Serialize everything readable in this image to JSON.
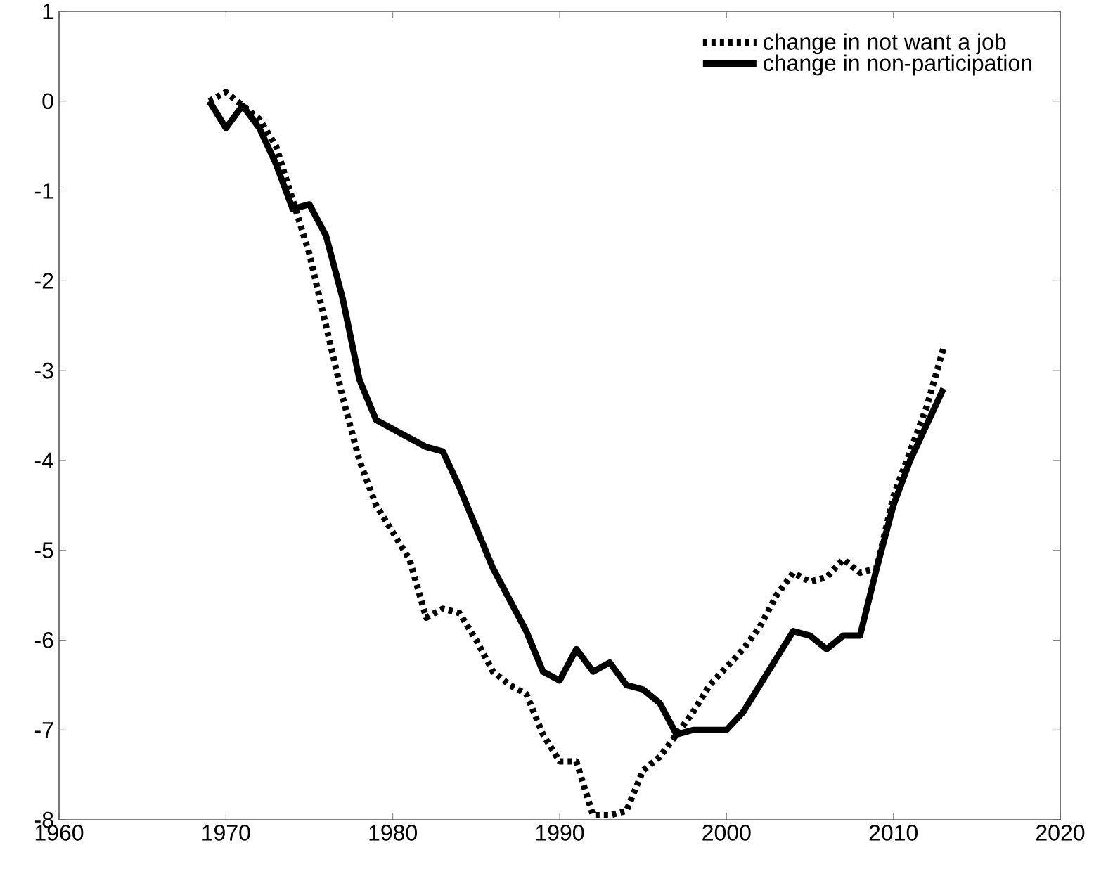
{
  "chart_data": {
    "type": "line",
    "xlim": [
      1960,
      2020
    ],
    "xticks": [
      1960,
      1970,
      1980,
      1990,
      2000,
      2010,
      2020
    ],
    "ylim": [
      -8,
      1
    ],
    "yticks": [
      -8,
      -7,
      -6,
      -5,
      -4,
      -3,
      -2,
      -1,
      0,
      1
    ],
    "grid": false,
    "legend": "top right",
    "marker": "none",
    "series": [
      {
        "name": "change in not want a job",
        "color": "#000000",
        "line_style": "dotted",
        "x": [
          1969,
          1970,
          1971,
          1972,
          1973,
          1974,
          1975,
          1976,
          1977,
          1978,
          1979,
          1980,
          1981,
          1982,
          1983,
          1984,
          1985,
          1986,
          1987,
          1988,
          1989,
          1990,
          1991,
          1992,
          1993,
          1994,
          1995,
          1996,
          1997,
          1998,
          1999,
          2000,
          2001,
          2002,
          2003,
          2004,
          2005,
          2006,
          2007,
          2008,
          2009,
          2010,
          2011,
          2012,
          2013
        ],
        "values": [
          0,
          0.1,
          -0.05,
          -0.2,
          -0.5,
          -1.1,
          -1.7,
          -2.5,
          -3.3,
          -4.0,
          -4.5,
          -4.8,
          -5.1,
          -5.75,
          -5.65,
          -5.7,
          -6.0,
          -6.35,
          -6.5,
          -6.6,
          -7.05,
          -7.35,
          -7.35,
          -7.95,
          -7.95,
          -7.9,
          -7.45,
          -7.3,
          -7.05,
          -6.8,
          -6.5,
          -6.3,
          -6.1,
          -5.85,
          -5.5,
          -5.25,
          -5.35,
          -5.3,
          -5.1,
          -5.25,
          -5.2,
          -4.4,
          -3.9,
          -3.4,
          -2.75
        ]
      },
      {
        "name": "change in non-participation",
        "color": "#000000",
        "line_style": "solid",
        "x": [
          1969,
          1970,
          1971,
          1972,
          1973,
          1974,
          1975,
          1976,
          1977,
          1978,
          1979,
          1980,
          1981,
          1982,
          1983,
          1984,
          1985,
          1986,
          1987,
          1988,
          1989,
          1990,
          1991,
          1992,
          1993,
          1994,
          1995,
          1996,
          1997,
          1998,
          1999,
          2000,
          2001,
          2002,
          2003,
          2004,
          2005,
          2006,
          2007,
          2008,
          2009,
          2010,
          2011,
          2012,
          2013
        ],
        "values": [
          0,
          -0.3,
          -0.05,
          -0.3,
          -0.7,
          -1.2,
          -1.15,
          -1.5,
          -2.2,
          -3.1,
          -3.55,
          -3.65,
          -3.75,
          -3.85,
          -3.9,
          -4.3,
          -4.75,
          -5.2,
          -5.55,
          -5.9,
          -6.35,
          -6.45,
          -6.1,
          -6.35,
          -6.25,
          -6.5,
          -6.55,
          -6.7,
          -7.05,
          -7.0,
          -7.0,
          -7.0,
          -6.8,
          -6.5,
          -6.2,
          -5.9,
          -5.95,
          -6.1,
          -5.95,
          -5.95,
          -5.2,
          -4.5,
          -4.0,
          -3.6,
          -3.2
        ]
      }
    ]
  }
}
